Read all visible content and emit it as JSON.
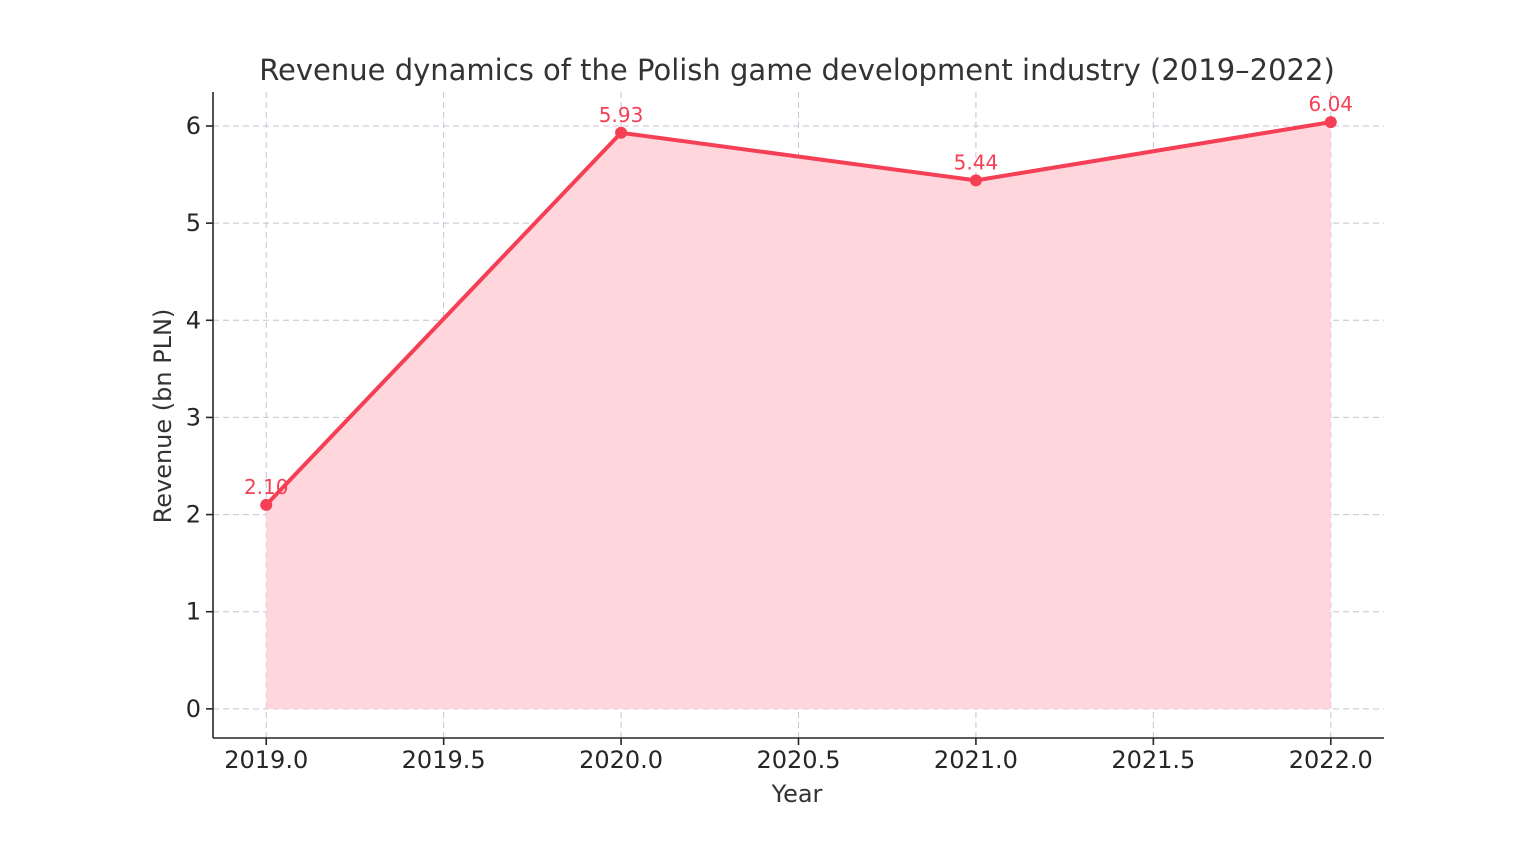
{
  "chart_data": {
    "type": "area",
    "title": "Revenue dynamics of the Polish game development industry (2019–2022)",
    "xlabel": "Year",
    "ylabel": "Revenue (bn PLN)",
    "x": [
      2019,
      2020,
      2021,
      2022
    ],
    "values": [
      2.1,
      5.93,
      5.44,
      6.04
    ],
    "data_labels": [
      "2.10",
      "5.93",
      "5.44",
      "6.04"
    ],
    "xlim": [
      2018.85,
      2022.15
    ],
    "ylim": [
      -0.3,
      6.35
    ],
    "x_ticks": [
      2019.0,
      2019.5,
      2020.0,
      2020.5,
      2021.0,
      2021.5,
      2022.0
    ],
    "x_tick_labels": [
      "2019.0",
      "2019.5",
      "2020.0",
      "2020.5",
      "2021.0",
      "2021.5",
      "2022.0"
    ],
    "y_ticks": [
      0,
      1,
      2,
      3,
      4,
      5,
      6
    ],
    "y_tick_labels": [
      "0",
      "1",
      "2",
      "3",
      "4",
      "5",
      "6"
    ],
    "grid": true,
    "colors": {
      "line": "#f43f55",
      "fill": "#ffd6dc",
      "label": "#f43f55"
    }
  }
}
